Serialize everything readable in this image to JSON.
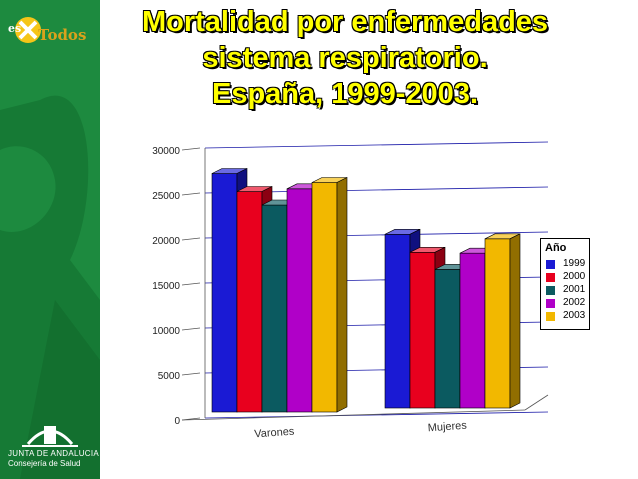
{
  "title_lines": [
    "Mortalidad por enfermedades",
    "sistema  respiratorio.",
    "España, 1999-2003."
  ],
  "branding": {
    "top_logo_text": "es",
    "top_logo_text2": "Todos",
    "footer_line1": "JUNTA DE ANDALUCIA",
    "footer_line2": "Consejería de Salud"
  },
  "colors": {
    "sidebar": "#1d8a3f",
    "title": "#ffff00"
  },
  "chart_data": {
    "type": "bar",
    "categories": [
      "Varones",
      "Mujeres"
    ],
    "ylim": [
      0,
      30000
    ],
    "yticks": [
      0,
      5000,
      10000,
      15000,
      20000,
      25000,
      30000
    ],
    "legend_title": "Año",
    "legend_position": "right",
    "grid": true,
    "series": [
      {
        "name": "1999",
        "color": "#1a1ad4",
        "values": [
          26500,
          19300
        ]
      },
      {
        "name": "2000",
        "color": "#e8001e",
        "values": [
          24500,
          17300
        ]
      },
      {
        "name": "2001",
        "color": "#0b5a60",
        "values": [
          23000,
          15400
        ]
      },
      {
        "name": "2002",
        "color": "#b000c8",
        "values": [
          24800,
          17200
        ]
      },
      {
        "name": "2003",
        "color": "#f2b800",
        "values": [
          25500,
          18800
        ]
      }
    ]
  }
}
